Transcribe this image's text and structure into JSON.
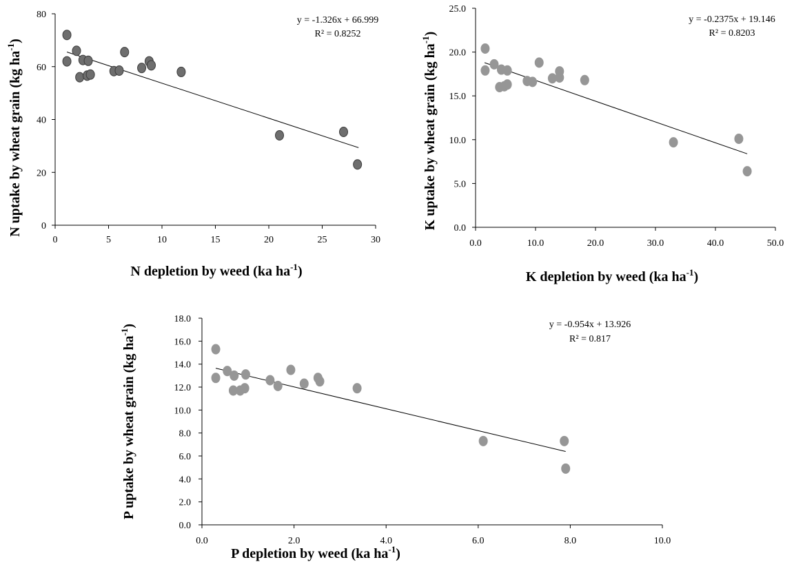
{
  "chart_data": [
    {
      "type": "scatter",
      "title": "",
      "xlabel": "N depletion by weed (ka ha-1)",
      "ylabel": "N uptake by wheat grain (kg ha-1)",
      "xlabel_text": "N depletion by weed (ka ha",
      "xlabel_sup": "-1",
      "xlabel_end": ")",
      "ylabel_text": "N uptake by wheat grain (kg ha",
      "ylabel_sup": "-1",
      "ylabel_end": ")",
      "xlim": [
        0,
        30
      ],
      "ylim": [
        0,
        80
      ],
      "xticks": [
        0,
        5,
        10,
        15,
        20,
        25,
        30
      ],
      "xtick_labels": [
        "0",
        "5",
        "10",
        "15",
        "20",
        "25",
        "30"
      ],
      "yticks": [
        0,
        20,
        40,
        60,
        80
      ],
      "ytick_labels": [
        "0",
        "20",
        "40",
        "60",
        "80"
      ],
      "grid": false,
      "marker_color": "#6e6e6e",
      "marker_stroke": "#3c3c3c",
      "trendline": {
        "slope": -1.326,
        "intercept": 66.999,
        "x_range": [
          1.1,
          28.4
        ]
      },
      "equation": "y = -1.326x + 66.999",
      "r_squared": "R² = 0.8252",
      "points": [
        {
          "x": 1.1,
          "y": 72
        },
        {
          "x": 1.1,
          "y": 62
        },
        {
          "x": 2.0,
          "y": 66
        },
        {
          "x": 2.6,
          "y": 62.5
        },
        {
          "x": 2.3,
          "y": 56
        },
        {
          "x": 3.1,
          "y": 62.2
        },
        {
          "x": 3.0,
          "y": 56.6
        },
        {
          "x": 3.3,
          "y": 57
        },
        {
          "x": 5.5,
          "y": 58.3
        },
        {
          "x": 6.0,
          "y": 58.5
        },
        {
          "x": 6.5,
          "y": 65.5
        },
        {
          "x": 8.1,
          "y": 59.5
        },
        {
          "x": 8.8,
          "y": 62
        },
        {
          "x": 9.0,
          "y": 60.5
        },
        {
          "x": 11.8,
          "y": 58
        },
        {
          "x": 21.0,
          "y": 34
        },
        {
          "x": 27.0,
          "y": 35.3
        },
        {
          "x": 28.3,
          "y": 23
        }
      ]
    },
    {
      "type": "scatter",
      "title": "",
      "xlabel": "K depletion by weed (ka ha-1)",
      "ylabel": "K uptake by wheat grain (kg ha-1)",
      "xlabel_text": "K depletion by weed (ka ha",
      "xlabel_sup": "-1",
      "xlabel_end": ")",
      "ylabel_text": "K uptake by wheat grain  (kg ha",
      "ylabel_sup": "-1",
      "ylabel_end": ")",
      "xlim": [
        0,
        50
      ],
      "ylim": [
        0,
        25
      ],
      "xticks": [
        0,
        10,
        20,
        30,
        40,
        50
      ],
      "xtick_labels": [
        "0.0",
        "10.0",
        "20.0",
        "30.0",
        "40.0",
        "50.0"
      ],
      "yticks": [
        0,
        5,
        10,
        15,
        20,
        25
      ],
      "ytick_labels": [
        "0.0",
        "5.0",
        "10.0",
        "15.0",
        "20.0",
        "25.0"
      ],
      "grid": false,
      "marker_color": "#969696",
      "marker_stroke": "#969696",
      "trendline": {
        "slope": -0.2375,
        "intercept": 19.146,
        "x_range": [
          1.5,
          45.3
        ]
      },
      "equation": "y = -0.2375x + 19.146",
      "r_squared": "R² = 0.8203",
      "points": [
        {
          "x": 1.6,
          "y": 20.4
        },
        {
          "x": 1.6,
          "y": 17.9
        },
        {
          "x": 3.1,
          "y": 18.6
        },
        {
          "x": 4.3,
          "y": 18
        },
        {
          "x": 4.0,
          "y": 16
        },
        {
          "x": 4.8,
          "y": 16.1
        },
        {
          "x": 5.3,
          "y": 16.3
        },
        {
          "x": 5.3,
          "y": 17.9
        },
        {
          "x": 8.6,
          "y": 16.7
        },
        {
          "x": 9.5,
          "y": 16.6
        },
        {
          "x": 10.6,
          "y": 18.8
        },
        {
          "x": 12.8,
          "y": 17
        },
        {
          "x": 14.0,
          "y": 17.8
        },
        {
          "x": 14.0,
          "y": 17.1
        },
        {
          "x": 18.2,
          "y": 16.8
        },
        {
          "x": 33.0,
          "y": 9.7
        },
        {
          "x": 43.9,
          "y": 10.1
        },
        {
          "x": 45.3,
          "y": 6.4
        }
      ]
    },
    {
      "type": "scatter",
      "title": "",
      "xlabel": "P depletion by weed (ka ha-1)",
      "ylabel": "P uptake by wheat grain (kg ha-1)",
      "xlabel_text": "P depletion by weed (ka ha",
      "xlabel_sup": "-1",
      "xlabel_end": ")",
      "ylabel_text": "P uptake by wheat grain (kg ha",
      "ylabel_sup": "-1",
      "ylabel_end": ")",
      "xlim": [
        0,
        10
      ],
      "ylim": [
        0,
        18
      ],
      "xticks": [
        0,
        2,
        4,
        6,
        8,
        10
      ],
      "xtick_labels": [
        "0.0",
        "2.0",
        "4.0",
        "6.0",
        "8.0",
        "10.0"
      ],
      "yticks": [
        0,
        2,
        4,
        6,
        8,
        10,
        12,
        14,
        16,
        18
      ],
      "ytick_labels": [
        "0.0",
        "2.0",
        "4.0",
        "6.0",
        "8.0",
        "10.0",
        "12.0",
        "14.0",
        "16.0",
        "18.0"
      ],
      "grid": false,
      "marker_color": "#969696",
      "marker_stroke": "#969696",
      "trendline": {
        "slope": -0.954,
        "intercept": 13.926,
        "x_range": [
          0.3,
          7.9
        ]
      },
      "equation": "y = -0.954x + 13.926",
      "r_squared": "R² = 0.817",
      "points": [
        {
          "x": 0.3,
          "y": 15.3
        },
        {
          "x": 0.3,
          "y": 12.8
        },
        {
          "x": 0.55,
          "y": 13.4
        },
        {
          "x": 0.7,
          "y": 13.0
        },
        {
          "x": 0.68,
          "y": 11.7
        },
        {
          "x": 0.83,
          "y": 11.7
        },
        {
          "x": 0.93,
          "y": 11.9
        },
        {
          "x": 0.95,
          "y": 13.1
        },
        {
          "x": 1.48,
          "y": 12.6
        },
        {
          "x": 1.65,
          "y": 12.1
        },
        {
          "x": 1.93,
          "y": 13.5
        },
        {
          "x": 2.22,
          "y": 12.3
        },
        {
          "x": 2.52,
          "y": 12.8
        },
        {
          "x": 2.56,
          "y": 12.5
        },
        {
          "x": 3.37,
          "y": 11.9
        },
        {
          "x": 6.11,
          "y": 7.3
        },
        {
          "x": 7.87,
          "y": 7.3
        },
        {
          "x": 7.9,
          "y": 4.9
        }
      ]
    }
  ]
}
